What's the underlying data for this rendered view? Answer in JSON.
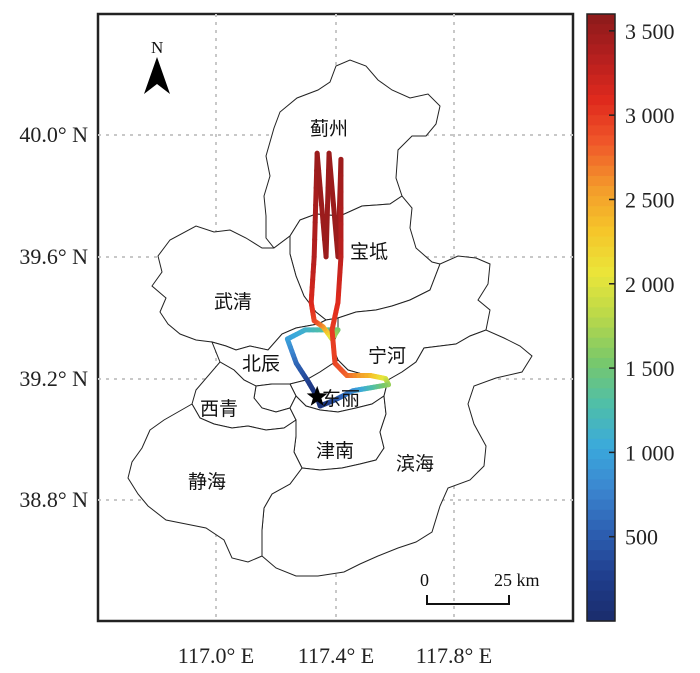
{
  "map": {
    "axis_labels": {
      "lat": [
        "40.0° N",
        "39.6° N",
        "39.2° N",
        "38.8° N"
      ],
      "lon": [
        "117.0° E",
        "117.4° E",
        "117.8° E"
      ]
    },
    "districts": [
      "蓟州",
      "宝坻",
      "武清",
      "宁河",
      "北辰",
      "东丽",
      "西青",
      "津南",
      "滨海",
      "静海"
    ],
    "north_label": "N",
    "scale_bar": {
      "start": "0",
      "end": "25 km"
    },
    "colorbar": {
      "labels": [
        "3 500",
        "3 000",
        "2 500",
        "2 000",
        "1 500",
        "1 000",
        "500"
      ],
      "colors": [
        "#8b1a1a",
        "#b51f1f",
        "#e02a1d",
        "#f0592a",
        "#f39a2b",
        "#f5c52a",
        "#eae63a",
        "#b8d84a",
        "#79c86a",
        "#4fbfa8",
        "#3aa9dc",
        "#3b84cf",
        "#2c5eb0",
        "#1f3d8c",
        "#1a2c6b"
      ]
    }
  },
  "chart_data": {
    "type": "map",
    "title": "",
    "xlabel": "",
    "ylabel": "",
    "xlim": [
      116.65,
      118.0
    ],
    "ylim": [
      38.42,
      40.4
    ],
    "x_ticks": [
      117.0,
      117.4,
      117.8
    ],
    "y_ticks": [
      40.0,
      39.6,
      39.2,
      38.8
    ],
    "grid": true,
    "colorbar_range": [
      0,
      3600
    ],
    "colorbar_ticks": [
      3500,
      3000,
      2500,
      2000,
      1500,
      1000,
      500
    ],
    "marker": {
      "symbol": "star",
      "lon": 117.34,
      "lat": 39.14
    },
    "track": [
      {
        "lon": 117.34,
        "lat": 39.14,
        "v": 30
      },
      {
        "lon": 117.31,
        "lat": 39.19,
        "v": 250
      },
      {
        "lon": 117.27,
        "lat": 39.25,
        "v": 550
      },
      {
        "lon": 117.24,
        "lat": 39.33,
        "v": 950
      },
      {
        "lon": 117.3,
        "lat": 39.36,
        "v": 1100
      },
      {
        "lon": 117.38,
        "lat": 39.36,
        "v": 1350
      },
      {
        "lon": 117.41,
        "lat": 39.36,
        "v": 1500
      },
      {
        "lon": 117.39,
        "lat": 39.33,
        "v": 1800
      },
      {
        "lon": 117.36,
        "lat": 39.37,
        "v": 2500
      },
      {
        "lon": 117.33,
        "lat": 39.39,
        "v": 2900
      },
      {
        "lon": 117.32,
        "lat": 39.45,
        "v": 3100
      },
      {
        "lon": 117.33,
        "lat": 39.6,
        "v": 3350
      },
      {
        "lon": 117.34,
        "lat": 39.94,
        "v": 3500
      },
      {
        "lon": 117.37,
        "lat": 39.6,
        "v": 3500
      },
      {
        "lon": 117.38,
        "lat": 39.94,
        "v": 3500
      },
      {
        "lon": 117.41,
        "lat": 39.6,
        "v": 3500
      },
      {
        "lon": 117.42,
        "lat": 39.92,
        "v": 3500
      },
      {
        "lon": 117.42,
        "lat": 39.6,
        "v": 3300
      },
      {
        "lon": 117.41,
        "lat": 39.45,
        "v": 3100
      },
      {
        "lon": 117.39,
        "lat": 39.36,
        "v": 3000
      },
      {
        "lon": 117.4,
        "lat": 39.25,
        "v": 2950
      },
      {
        "lon": 117.44,
        "lat": 39.21,
        "v": 2800
      },
      {
        "lon": 117.52,
        "lat": 39.21,
        "v": 2400
      },
      {
        "lon": 117.57,
        "lat": 39.2,
        "v": 2000
      },
      {
        "lon": 117.58,
        "lat": 39.18,
        "v": 1700
      },
      {
        "lon": 117.52,
        "lat": 39.17,
        "v": 1300
      },
      {
        "lon": 117.46,
        "lat": 39.16,
        "v": 900
      },
      {
        "lon": 117.4,
        "lat": 39.13,
        "v": 450
      },
      {
        "lon": 117.35,
        "lat": 39.11,
        "v": 150
      },
      {
        "lon": 117.34,
        "lat": 39.14,
        "v": 30
      }
    ]
  }
}
